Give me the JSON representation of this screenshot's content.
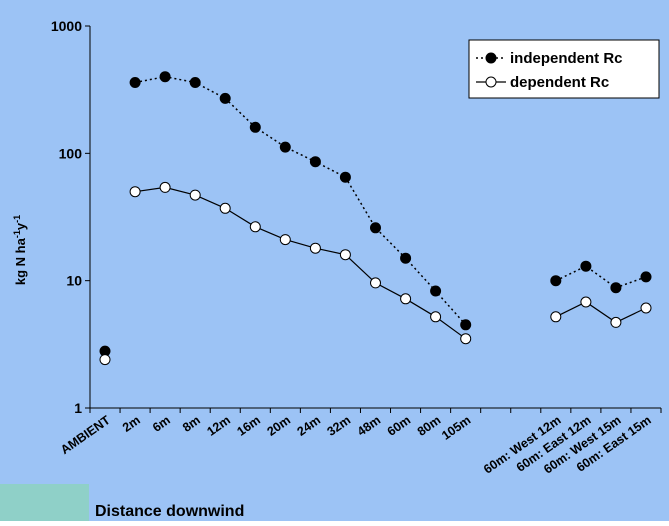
{
  "colors": {
    "background": "#9cc3f5",
    "accent_strip": "#8fd0c8",
    "independent": "#000000",
    "dependent": "#000000"
  },
  "chart_data": {
    "type": "line",
    "title": "",
    "xlabel": "Distance downwind",
    "ylabel": "kg N ha-1y-1",
    "ylabel_parts": {
      "base": "kg N ha",
      "exp1": "-1",
      "mid": "y",
      "exp2": "-1"
    },
    "yscale": "log",
    "ylim": [
      1,
      1000
    ],
    "yticks": [
      "1",
      "10",
      "100",
      "1000"
    ],
    "grid": false,
    "legend_position": "top-right",
    "categories": [
      "AMBIENT",
      "2m",
      "6m",
      "8m",
      "12m",
      "16m",
      "20m",
      "24m",
      "32m",
      "48m",
      "60m",
      "80m",
      "105m",
      "",
      "",
      "60m: West 12m",
      "60m: East 12m",
      "60m: West 15m",
      "60m: East 15m"
    ],
    "series": [
      {
        "name": "independent Rc",
        "marker": "filled-circle",
        "line": "dotted",
        "segments": [
          [
            0,
            0
          ],
          [
            1,
            12
          ],
          [
            15,
            18
          ]
        ],
        "values": [
          2.8,
          360,
          400,
          360,
          270,
          160,
          112,
          86,
          65,
          26,
          15,
          8.3,
          4.5,
          null,
          null,
          10,
          13,
          8.8,
          10.7
        ]
      },
      {
        "name": "dependent Rc",
        "marker": "open-circle",
        "line": "solid",
        "segments": [
          [
            0,
            0
          ],
          [
            1,
            12
          ],
          [
            15,
            18
          ]
        ],
        "values": [
          2.4,
          50,
          54,
          47,
          37,
          26.5,
          21,
          18,
          16,
          9.6,
          7.2,
          5.2,
          3.5,
          null,
          null,
          5.2,
          6.8,
          4.7,
          6.1
        ]
      }
    ]
  }
}
